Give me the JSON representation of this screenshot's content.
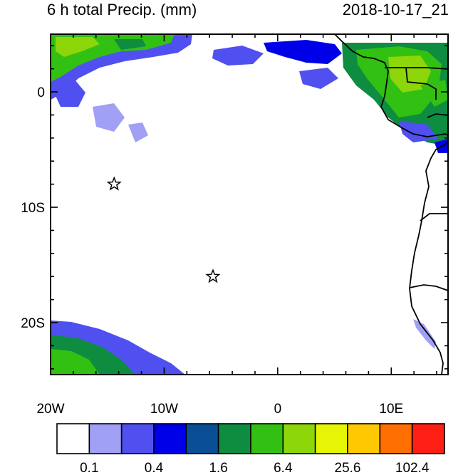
{
  "title": "6 h total Precip. (mm)",
  "datetime": "2018-10-17_21",
  "map": {
    "lon_range": [
      -20,
      15
    ],
    "lat_range": [
      -24.5,
      5
    ],
    "lon_ticks": [
      {
        "value": -20,
        "label": "20W"
      },
      {
        "value": -10,
        "label": "10W"
      },
      {
        "value": 0,
        "label": "0"
      },
      {
        "value": 10,
        "label": "10E"
      }
    ],
    "lat_ticks": [
      {
        "value": 0,
        "label": "0"
      },
      {
        "value": -10,
        "label": "10S"
      },
      {
        "value": -20,
        "label": "20S"
      }
    ],
    "markers": [
      {
        "name": "star-marker-1",
        "lon": -14.4,
        "lat": -8.0
      },
      {
        "name": "star-marker-2",
        "lon": -5.7,
        "lat": -16.0
      }
    ]
  },
  "colorbar": {
    "colors": [
      "#ffffff",
      "#a0a0f5",
      "#5050f0",
      "#0000e8",
      "#0a4f96",
      "#0e8c40",
      "#32c013",
      "#8cd60a",
      "#e6f505",
      "#ffc800",
      "#ff6e00",
      "#ff1e14"
    ],
    "labels": [
      "0.1",
      "0.4",
      "1.6",
      "6.4",
      "25.6",
      "102.4"
    ]
  }
}
